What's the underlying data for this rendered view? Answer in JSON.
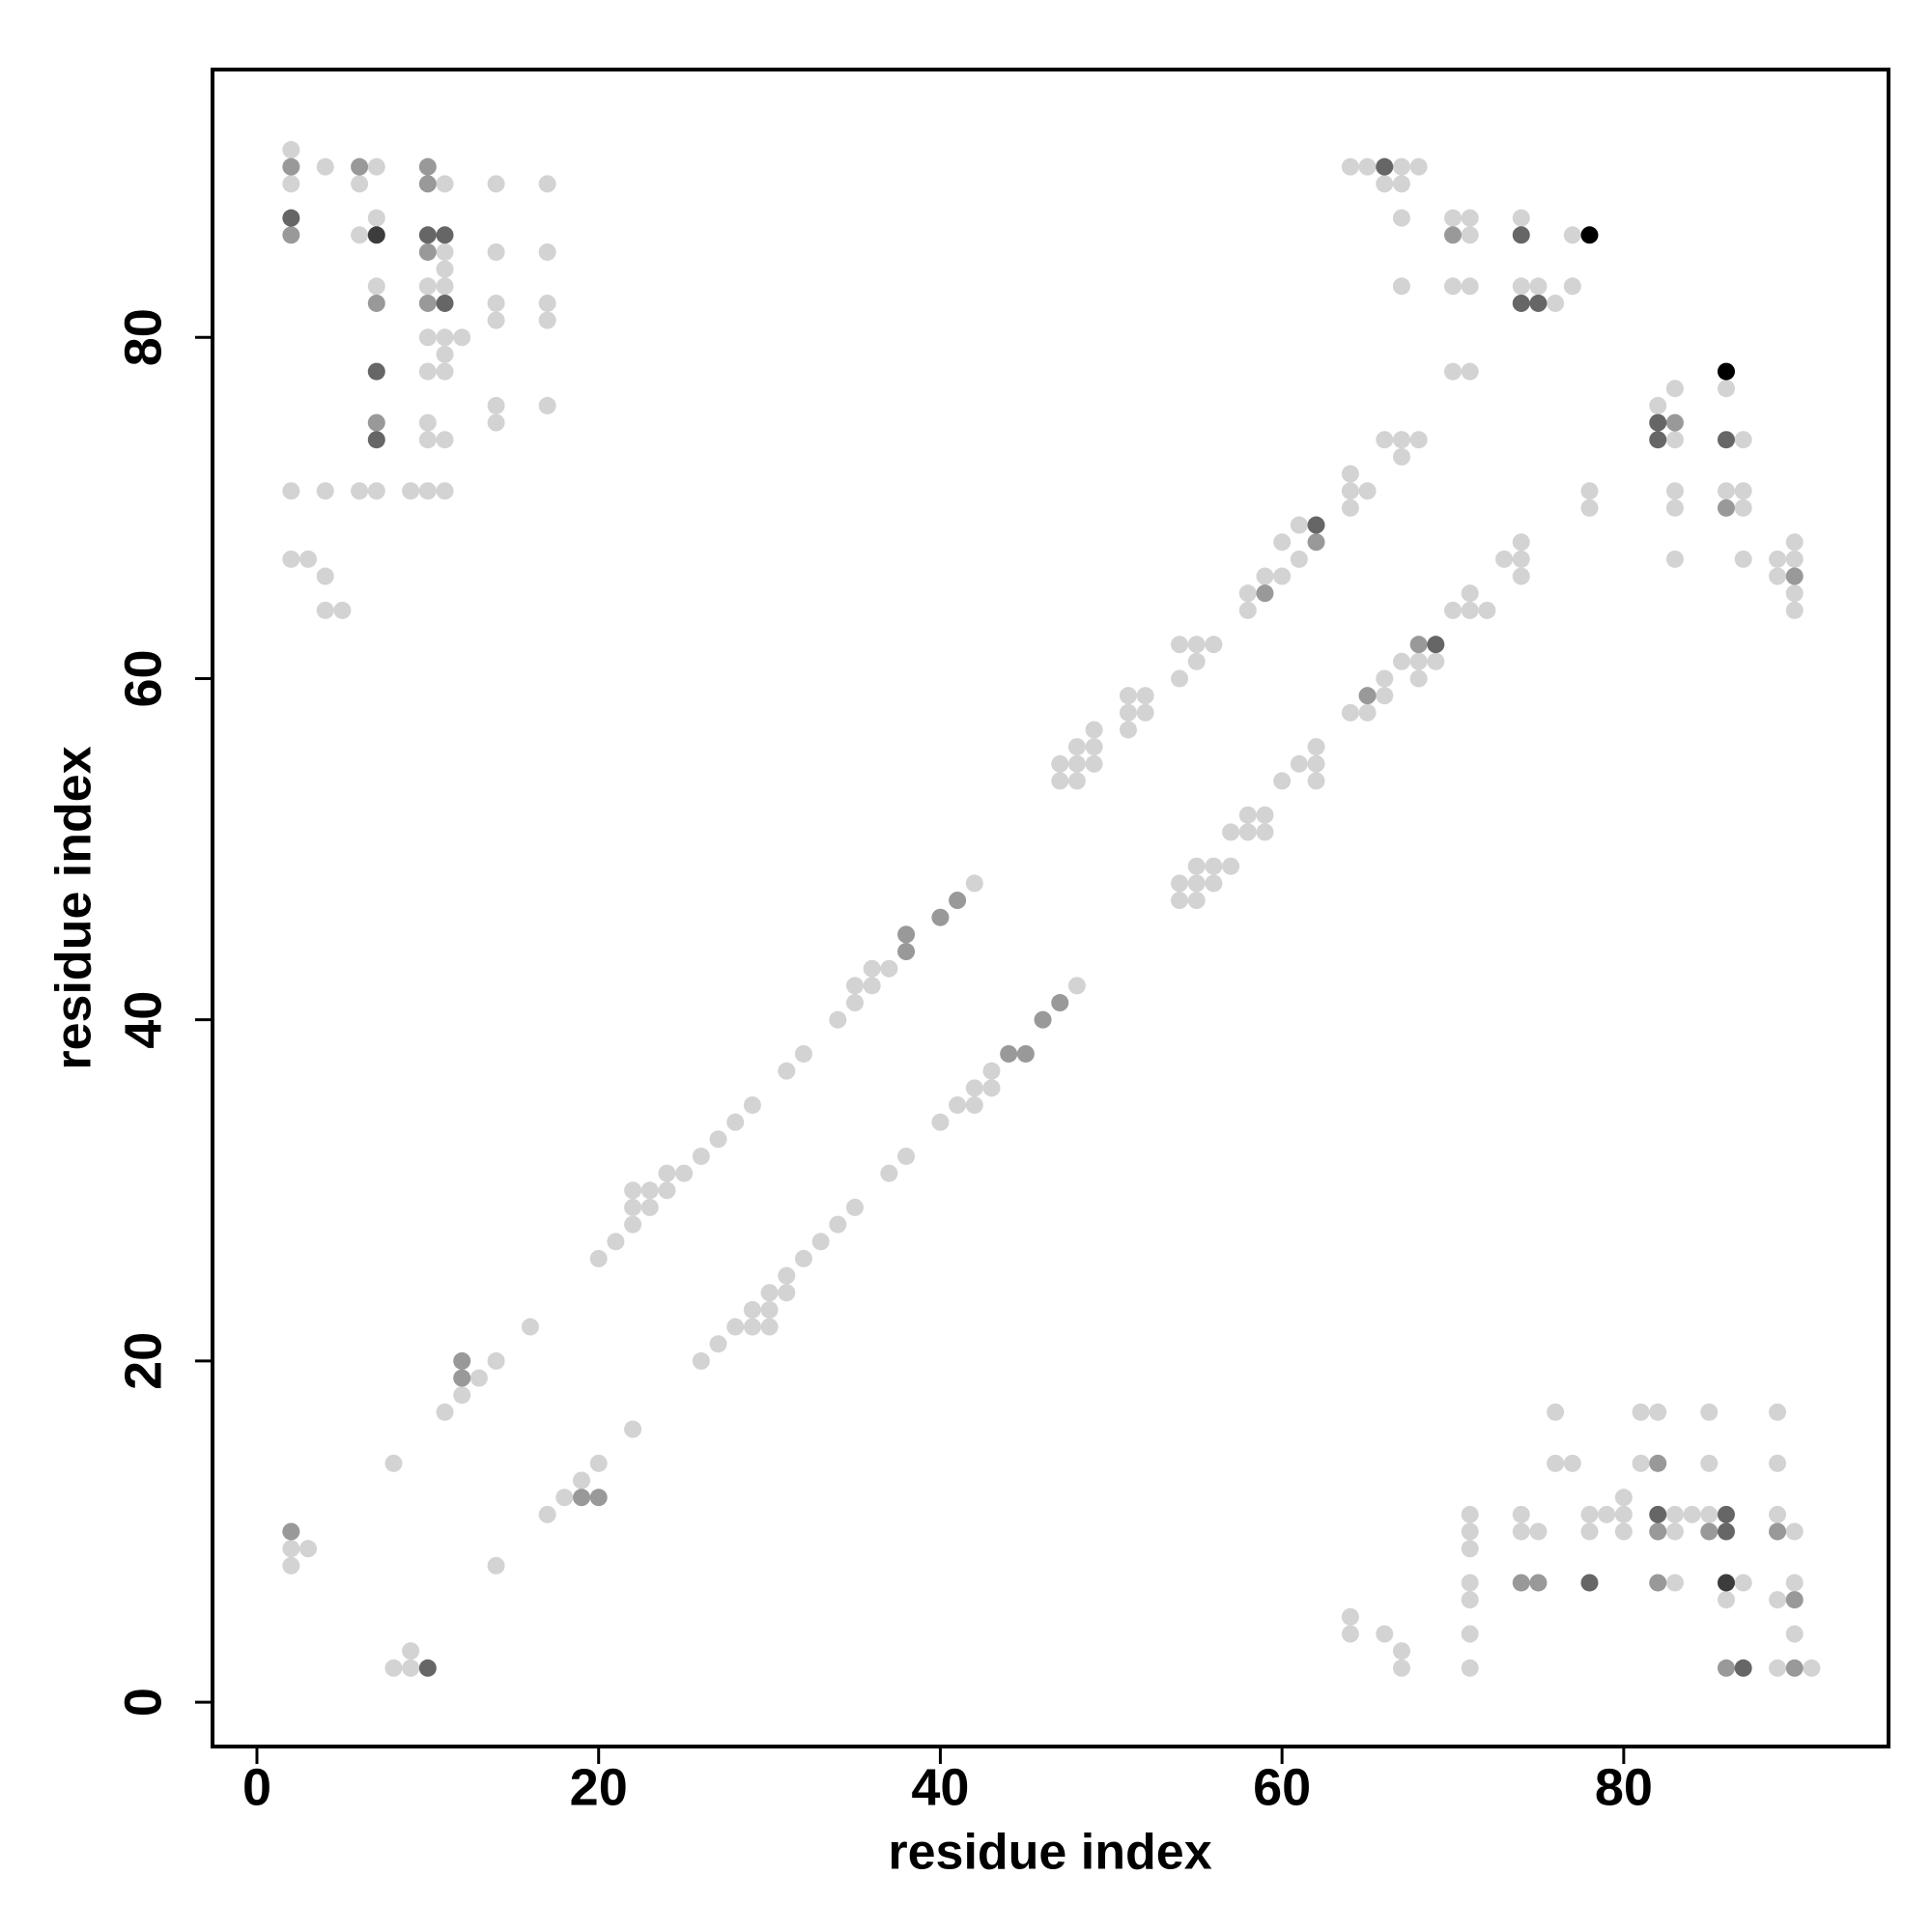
{
  "chart_data": {
    "type": "scatter",
    "xlabel": "residue index",
    "ylabel": "residue index",
    "xlim": [
      -2.6,
      95.5
    ],
    "ylim": [
      -2.6,
      95.7
    ],
    "xticks": [
      0,
      20,
      40,
      60,
      80
    ],
    "yticks": [
      0,
      20,
      40,
      60,
      80
    ],
    "series": [
      {
        "color": "#d3d3d3",
        "x": [
          2,
          2,
          2,
          2,
          2,
          2,
          3,
          3,
          4,
          4,
          4,
          4,
          5,
          6,
          6,
          6,
          7,
          7,
          7,
          7,
          8,
          8,
          9,
          9,
          9,
          10,
          10,
          10,
          10,
          10,
          10,
          11,
          11,
          11,
          11,
          11,
          11,
          11,
          11,
          11,
          11,
          12,
          12,
          13,
          14,
          14,
          14,
          14,
          14,
          14,
          14,
          14,
          16,
          17,
          17,
          17,
          17,
          17,
          17,
          18,
          19,
          20,
          20,
          21,
          22,
          22,
          22,
          22,
          23,
          23,
          24,
          24,
          25,
          26,
          26,
          27,
          27,
          28,
          28,
          29,
          29,
          29,
          30,
          30,
          30,
          31,
          31,
          31,
          32,
          32,
          33,
          34,
          34,
          35,
          35,
          35,
          36,
          36,
          37,
          37,
          38,
          40,
          41,
          42,
          42,
          42,
          43,
          43,
          47,
          47,
          48,
          48,
          48,
          48,
          49,
          49,
          49,
          51,
          51,
          51,
          52,
          52,
          54,
          54,
          54,
          54,
          55,
          55,
          55,
          55,
          55,
          56,
          56,
          56,
          57,
          57,
          58,
          58,
          58,
          58,
          59,
          59,
          59,
          60,
          60,
          60,
          61,
          61,
          61,
          62,
          62,
          62,
          64,
          64,
          64,
          64,
          64,
          64,
          64,
          65,
          65,
          65,
          66,
          66,
          66,
          66,
          66,
          67,
          67,
          67,
          67,
          67,
          67,
          67,
          67,
          67,
          68,
          68,
          68,
          68,
          69,
          70,
          70,
          70,
          70,
          71,
          71,
          71,
          71,
          71,
          71,
          71,
          71,
          71,
          71,
          71,
          71,
          71,
          72,
          73,
          74,
          74,
          74,
          74,
          74,
          74,
          74,
          75,
          75,
          76,
          76,
          76,
          77,
          77,
          77,
          78,
          78,
          78,
          78,
          79,
          80,
          80,
          80,
          81,
          81,
          82,
          82,
          83,
          83,
          83,
          83,
          83,
          83,
          83,
          83,
          84,
          85,
          85,
          85,
          86,
          86,
          86,
          87,
          87,
          87,
          87,
          87,
          89,
          89,
          89,
          89,
          89,
          89,
          89,
          90,
          90,
          90,
          90,
          90,
          90,
          90,
          91
        ],
        "values": [
          91,
          89,
          71,
          67,
          9,
          8,
          67,
          9,
          90,
          71,
          66,
          64,
          64,
          89,
          86,
          71,
          90,
          87,
          83,
          71,
          14,
          2,
          71,
          3,
          2,
          83,
          80,
          78,
          75,
          74,
          71,
          89,
          85,
          84,
          83,
          80,
          79,
          78,
          74,
          71,
          17,
          80,
          18,
          19,
          89,
          85,
          82,
          81,
          76,
          75,
          20,
          8,
          22,
          89,
          85,
          82,
          81,
          76,
          11,
          12,
          13,
          26,
          14,
          27,
          30,
          29,
          28,
          16,
          30,
          29,
          31,
          30,
          31,
          32,
          20,
          33,
          21,
          34,
          22,
          35,
          23,
          22,
          24,
          23,
          22,
          37,
          25,
          24,
          38,
          26,
          27,
          40,
          28,
          42,
          41,
          29,
          43,
          42,
          43,
          31,
          32,
          34,
          35,
          48,
          36,
          35,
          37,
          36,
          55,
          54,
          42,
          56,
          55,
          54,
          57,
          56,
          55,
          59,
          58,
          57,
          59,
          58,
          62,
          60,
          48,
          47,
          62,
          61,
          49,
          48,
          47,
          62,
          49,
          48,
          51,
          49,
          65,
          64,
          52,
          51,
          66,
          52,
          51,
          68,
          66,
          54,
          69,
          67,
          55,
          56,
          55,
          54,
          90,
          72,
          71,
          70,
          58,
          5,
          4,
          90,
          71,
          58,
          89,
          74,
          60,
          59,
          4,
          90,
          89,
          87,
          83,
          74,
          73,
          61,
          3,
          2,
          90,
          74,
          61,
          60,
          61,
          87,
          83,
          78,
          64,
          87,
          86,
          83,
          78,
          65,
          64,
          11,
          10,
          9,
          7,
          6,
          4,
          2,
          64,
          67,
          87,
          83,
          68,
          67,
          66,
          11,
          10,
          83,
          10,
          82,
          17,
          14,
          86,
          83,
          14,
          71,
          70,
          11,
          10,
          11,
          12,
          11,
          10,
          17,
          14,
          76,
          17,
          77,
          74,
          71,
          70,
          67,
          11,
          10,
          7,
          11,
          17,
          14,
          11,
          77,
          71,
          6,
          74,
          71,
          70,
          67,
          7,
          67,
          66,
          17,
          14,
          11,
          6,
          2,
          68,
          67,
          65,
          64,
          10,
          7,
          4,
          2
        ]
      },
      {
        "color": "#999999",
        "x": [
          2,
          2,
          2,
          6,
          7,
          7,
          10,
          10,
          10,
          10,
          12,
          12,
          19,
          20,
          38,
          38,
          40,
          41,
          44,
          45,
          46,
          47,
          59,
          62,
          65,
          68,
          70,
          74,
          75,
          82,
          82,
          82,
          83,
          85,
          86,
          86,
          89,
          90,
          90,
          90
        ],
        "values": [
          90,
          86,
          10,
          90,
          82,
          75,
          90,
          89,
          85,
          82,
          20,
          19,
          12,
          12,
          45,
          44,
          46,
          47,
          38,
          38,
          40,
          41,
          65,
          68,
          59,
          62,
          86,
          7,
          7,
          14,
          10,
          7,
          75,
          10,
          70,
          2,
          10,
          66,
          6,
          2
        ]
      },
      {
        "color": "#666666",
        "x": [
          2,
          7,
          7,
          10,
          11,
          11,
          10,
          62,
          66,
          69,
          74,
          74,
          75,
          78,
          82,
          82,
          82,
          86,
          86,
          86,
          87
        ],
        "values": [
          87,
          78,
          74,
          86,
          86,
          82,
          2,
          69,
          90,
          62,
          86,
          82,
          82,
          7,
          75,
          74,
          11,
          74,
          11,
          10,
          2
        ]
      },
      {
        "color": "#3c3c3c",
        "x": [
          7,
          86
        ],
        "values": [
          86,
          7
        ]
      },
      {
        "color": "#000000",
        "x": [
          78,
          86
        ],
        "values": [
          86,
          78
        ]
      }
    ]
  }
}
